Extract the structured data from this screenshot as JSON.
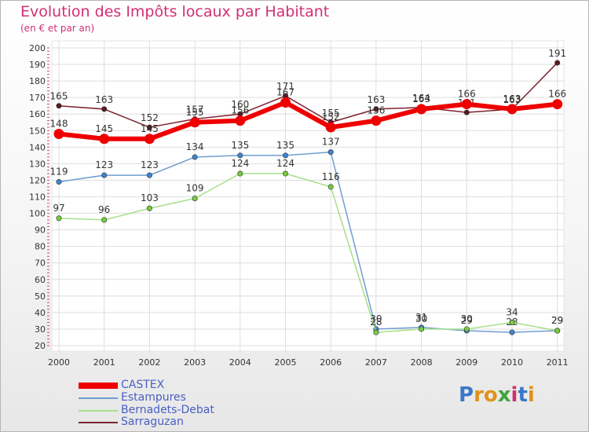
{
  "title": "Evolution des Impôts locaux par Habitant",
  "subtitle": "(en € et par an)",
  "brand": {
    "letters": [
      "P",
      "r",
      "o",
      "x",
      "i",
      "t",
      "i"
    ],
    "colors": [
      "#3a78c9",
      "#e0911c",
      "#e0911c",
      "#3fa33c",
      "#d22f6e",
      "#3a78c9",
      "#e0911c"
    ]
  },
  "chart_data": {
    "type": "line",
    "title": "Evolution des Impôts locaux par Habitant",
    "subtitle": "(en € et par an)",
    "xlabel": "",
    "ylabel": "",
    "x": [
      "2000",
      "2001",
      "2002",
      "2003",
      "2004",
      "2005",
      "2006",
      "2007",
      "2008",
      "2009",
      "2010",
      "2011"
    ],
    "ylim": [
      20,
      200
    ],
    "yticks": [
      "20",
      "30",
      "40",
      "50",
      "60",
      "70",
      "80",
      "90",
      "100",
      "110",
      "120",
      "130",
      "140",
      "150",
      "160",
      "170",
      "180",
      "190",
      "200"
    ],
    "grid": true,
    "legend_position": "bottom-left",
    "series": [
      {
        "name": "Sarraguzan",
        "color": "#7d2330",
        "marker": "#5c1820",
        "values": [
          165,
          163,
          152,
          157,
          160,
          171,
          155,
          163,
          164,
          161,
          163,
          191
        ],
        "labels": [
          "165",
          "163",
          "152",
          "157",
          "160",
          "171",
          "155",
          "163",
          "164",
          "161",
          "163",
          "191"
        ]
      },
      {
        "name": "Estampures",
        "color": "#6f9ed0",
        "marker": "#3e86cf",
        "values": [
          119,
          123,
          123,
          134,
          135,
          135,
          137,
          30,
          31,
          29,
          28,
          29
        ],
        "labels": [
          "119",
          "123",
          "123",
          "134",
          "135",
          "135",
          "137",
          "30",
          "31",
          "29",
          "28",
          "29"
        ]
      },
      {
        "name": "Bernadets-Debat",
        "color": "#a6e08a",
        "marker": "#77cd3d",
        "values": [
          97,
          96,
          103,
          109,
          124,
          124,
          116,
          28,
          30,
          30,
          34,
          29
        ],
        "labels": [
          "97",
          "96",
          "103",
          "109",
          "124",
          "124",
          "116",
          "28",
          "30",
          "30",
          "34",
          "29"
        ]
      },
      {
        "name": "CASTEX",
        "color": "#ee0000",
        "marker": "#ee0000",
        "values": [
          148,
          145,
          145,
          155,
          156,
          167,
          152,
          156,
          163,
          166,
          163,
          166
        ],
        "labels": [
          "148",
          "145",
          "145",
          "155",
          "156",
          "167",
          "152",
          "156",
          "163",
          "166",
          "163",
          "166"
        ]
      }
    ],
    "legend": [
      "CASTEX",
      "Estampures",
      "Bernadets-Debat",
      "Sarraguzan"
    ]
  }
}
